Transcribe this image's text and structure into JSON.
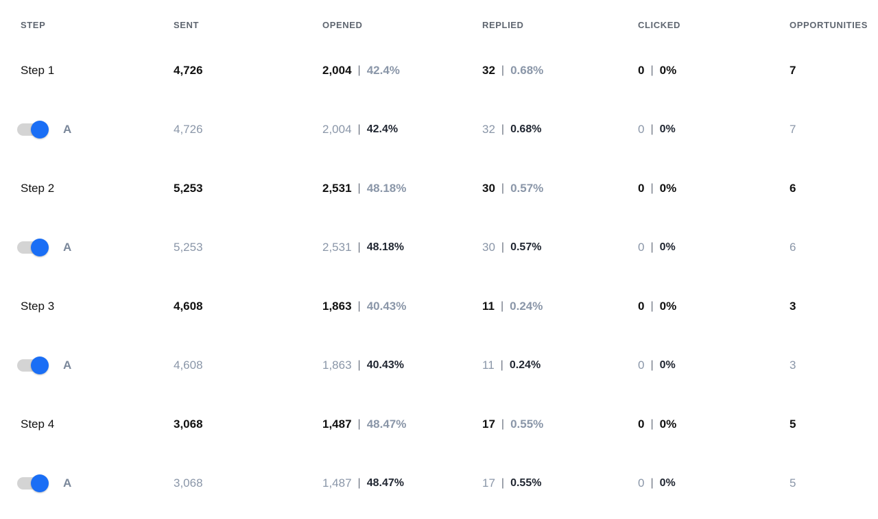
{
  "columns": {
    "step": "STEP",
    "sent": "SENT",
    "opened": "OPENED",
    "replied": "REPLIED",
    "clicked": "CLICKED",
    "opportunities": "OPPORTUNITIES"
  },
  "colors": {
    "toggle_on": "#1a6ef5",
    "toggle_track": "#d4d4d4",
    "muted_text": "#8a96a8"
  },
  "steps": [
    {
      "label": "Step 1",
      "sent": "4,726",
      "opened": "2,004",
      "opened_pct": "42.4%",
      "replied": "32",
      "replied_pct": "0.68%",
      "clicked": "0",
      "clicked_pct": "0%",
      "opportunities": "7",
      "variant": {
        "letter": "A",
        "enabled": true,
        "sent": "4,726",
        "opened": "2,004",
        "opened_pct": "42.4%",
        "replied": "32",
        "replied_pct": "0.68%",
        "clicked": "0",
        "clicked_pct": "0%",
        "opportunities": "7"
      }
    },
    {
      "label": "Step 2",
      "sent": "5,253",
      "opened": "2,531",
      "opened_pct": "48.18%",
      "replied": "30",
      "replied_pct": "0.57%",
      "clicked": "0",
      "clicked_pct": "0%",
      "opportunities": "6",
      "variant": {
        "letter": "A",
        "enabled": true,
        "sent": "5,253",
        "opened": "2,531",
        "opened_pct": "48.18%",
        "replied": "30",
        "replied_pct": "0.57%",
        "clicked": "0",
        "clicked_pct": "0%",
        "opportunities": "6"
      }
    },
    {
      "label": "Step 3",
      "sent": "4,608",
      "opened": "1,863",
      "opened_pct": "40.43%",
      "replied": "11",
      "replied_pct": "0.24%",
      "clicked": "0",
      "clicked_pct": "0%",
      "opportunities": "3",
      "variant": {
        "letter": "A",
        "enabled": true,
        "sent": "4,608",
        "opened": "1,863",
        "opened_pct": "40.43%",
        "replied": "11",
        "replied_pct": "0.24%",
        "clicked": "0",
        "clicked_pct": "0%",
        "opportunities": "3"
      }
    },
    {
      "label": "Step 4",
      "sent": "3,068",
      "opened": "1,487",
      "opened_pct": "48.47%",
      "replied": "17",
      "replied_pct": "0.55%",
      "clicked": "0",
      "clicked_pct": "0%",
      "opportunities": "5",
      "variant": {
        "letter": "A",
        "enabled": true,
        "sent": "3,068",
        "opened": "1,487",
        "opened_pct": "48.47%",
        "replied": "17",
        "replied_pct": "0.55%",
        "clicked": "0",
        "clicked_pct": "0%",
        "opportunities": "5"
      }
    }
  ]
}
